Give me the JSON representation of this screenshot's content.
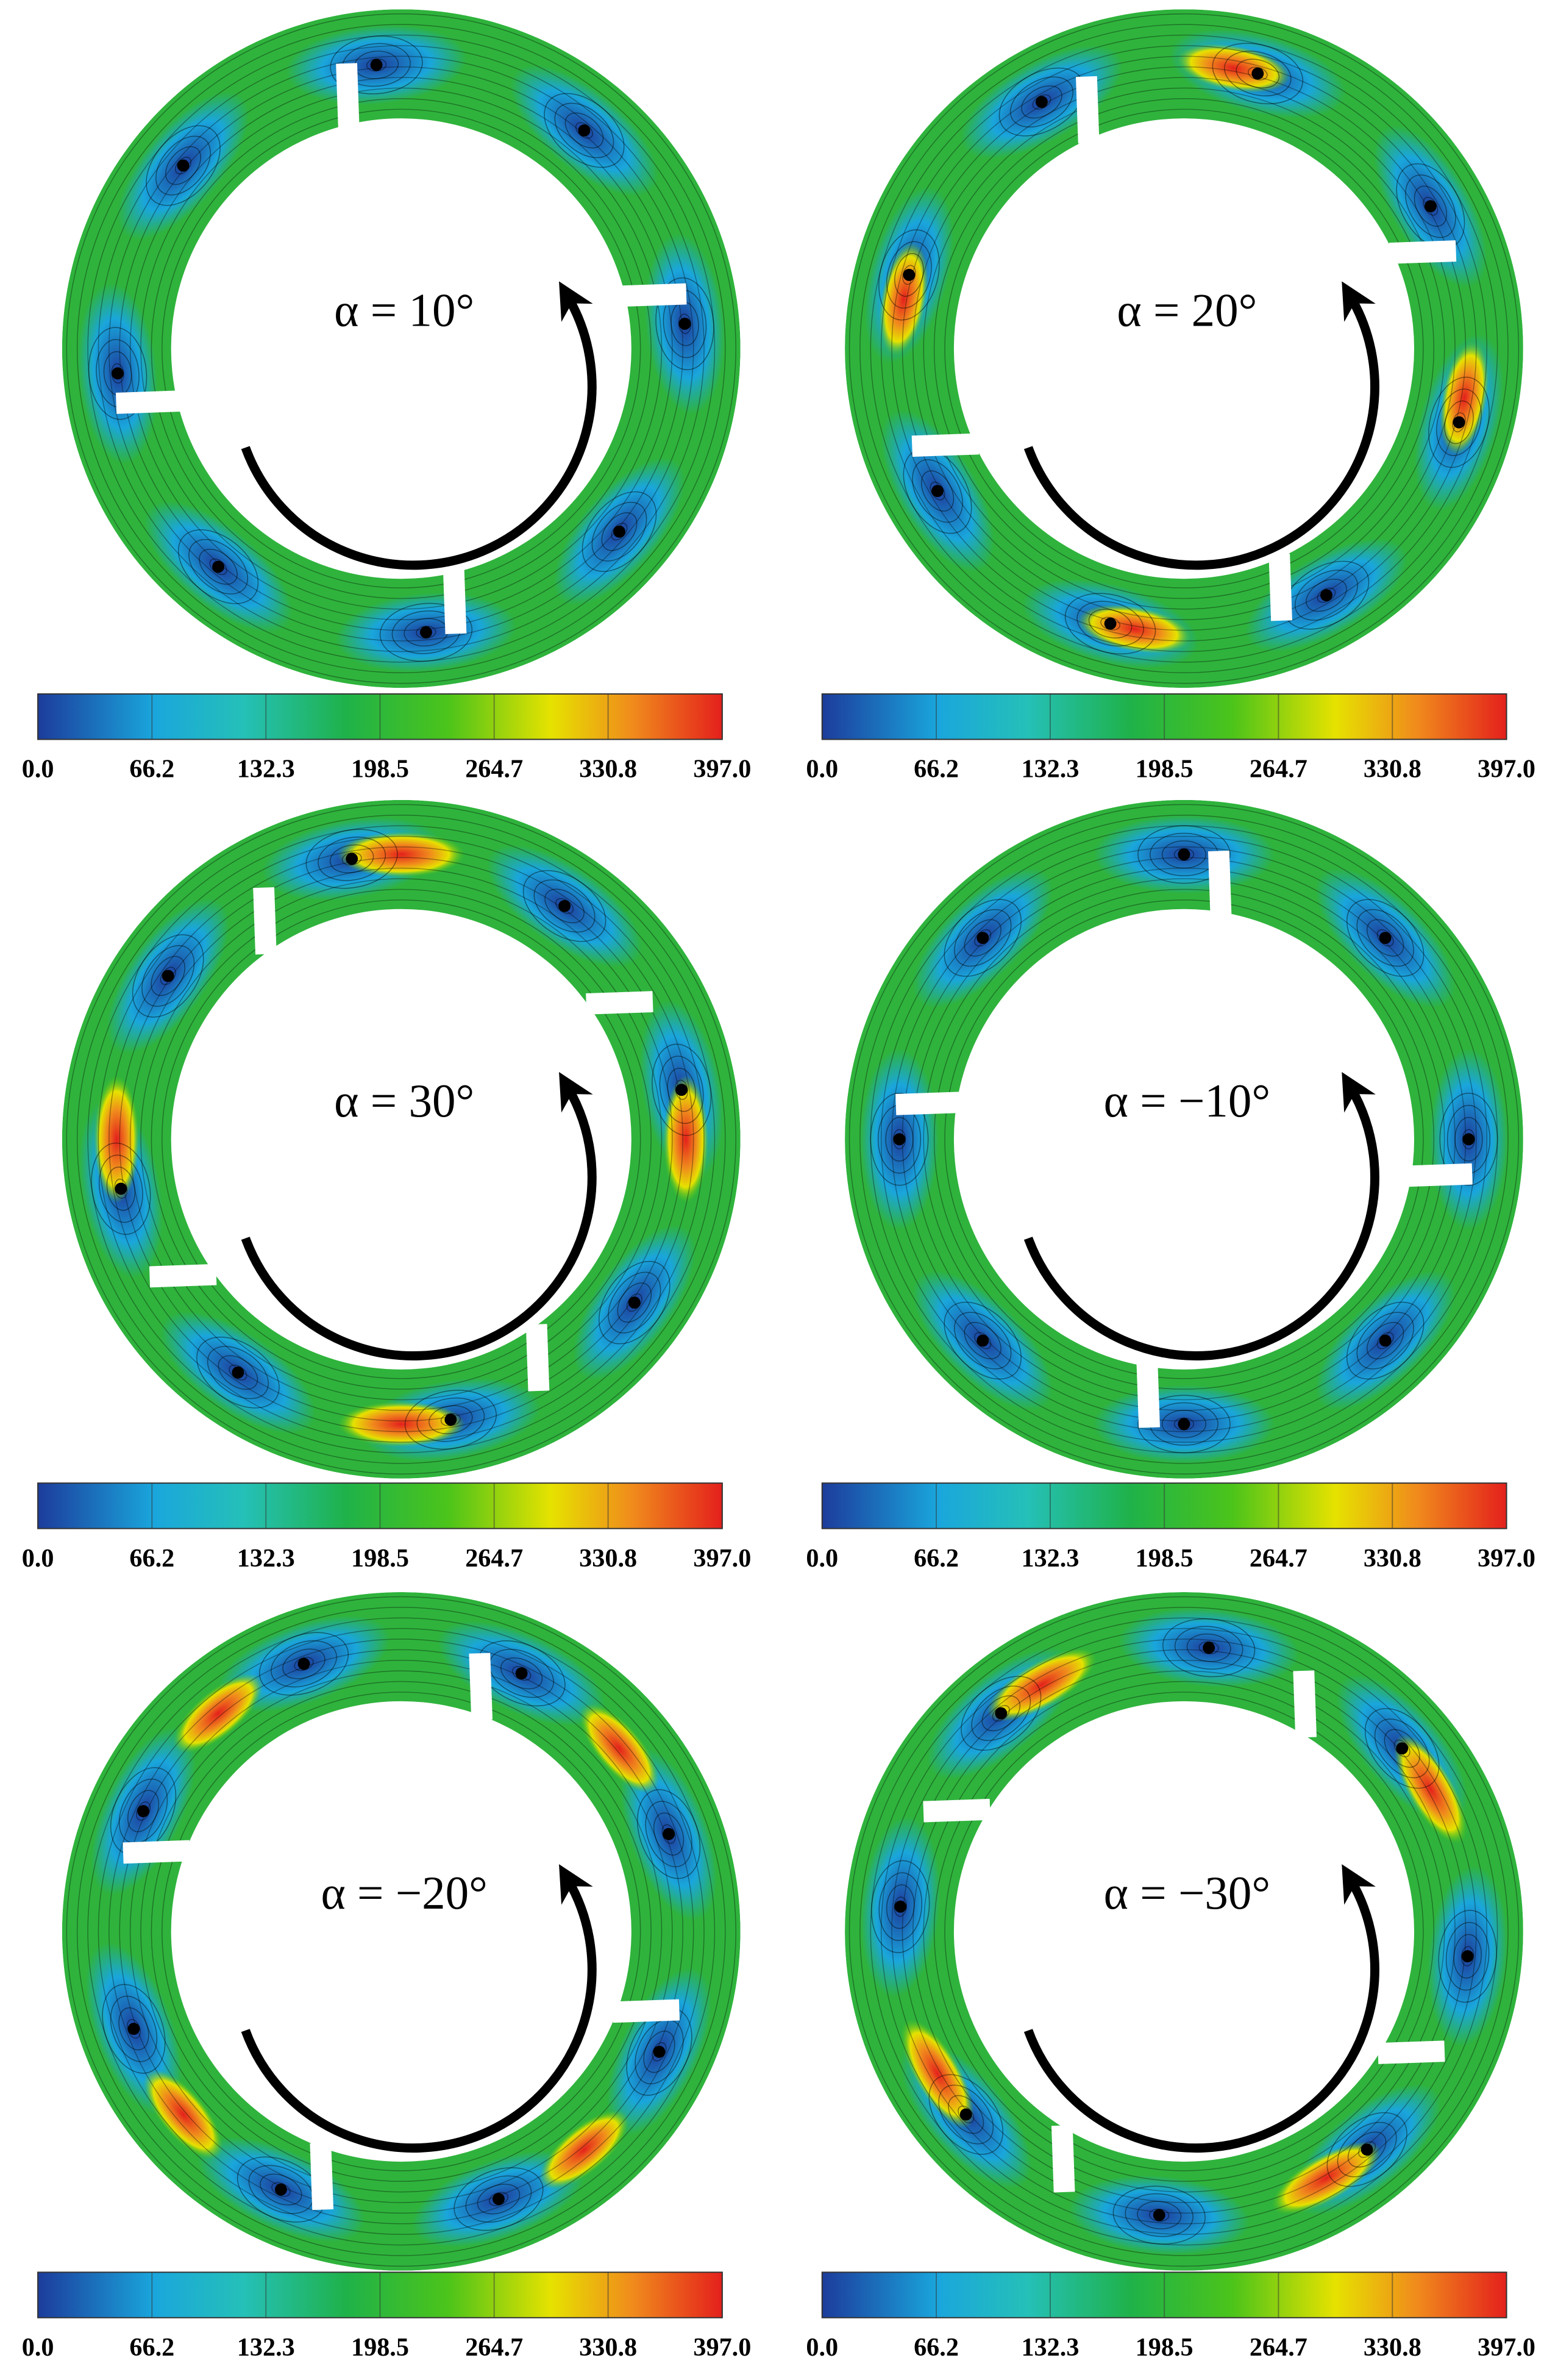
{
  "panels": [
    {
      "label": "α = 10°",
      "colorbar": {
        "range": [
          0,
          397
        ],
        "ticks": [
          {
            "value": 0,
            "label": "0.0"
          },
          {
            "value": 66.2,
            "label": "66.2"
          },
          {
            "value": 132.3,
            "label": "132.3"
          },
          {
            "value": 198.5,
            "label": "198.5"
          },
          {
            "value": 264.7,
            "label": "264.7"
          },
          {
            "value": 330.8,
            "label": "330.8"
          },
          {
            "value": 397,
            "label": "397.0"
          }
        ]
      }
    },
    {
      "label": "α = 20°",
      "colorbar": {
        "range": [
          0,
          397
        ],
        "ticks": [
          {
            "value": 0,
            "label": "0.0"
          },
          {
            "value": 66.2,
            "label": "66.2"
          },
          {
            "value": 132.3,
            "label": "132.3"
          },
          {
            "value": 198.5,
            "label": "198.5"
          },
          {
            "value": 264.7,
            "label": "264.7"
          },
          {
            "value": 330.8,
            "label": "330.8"
          },
          {
            "value": 397,
            "label": "397.0"
          }
        ]
      }
    },
    {
      "label": "α = 30°",
      "colorbar": {
        "range": [
          0,
          397
        ],
        "ticks": [
          {
            "value": 0,
            "label": "0.0"
          },
          {
            "value": 66.2,
            "label": "66.2"
          },
          {
            "value": 132.3,
            "label": "132.3"
          },
          {
            "value": 198.5,
            "label": "198.5"
          },
          {
            "value": 264.7,
            "label": "264.7"
          },
          {
            "value": 330.8,
            "label": "330.8"
          },
          {
            "value": 397,
            "label": "397.0"
          }
        ]
      }
    },
    {
      "label": "α = −10°",
      "colorbar": {
        "range": [
          0,
          397
        ],
        "ticks": [
          {
            "value": 0,
            "label": "0.0"
          },
          {
            "value": 66.2,
            "label": "66.2"
          },
          {
            "value": 132.3,
            "label": "132.3"
          },
          {
            "value": 198.5,
            "label": "198.5"
          },
          {
            "value": 264.7,
            "label": "264.7"
          },
          {
            "value": 330.8,
            "label": "330.8"
          },
          {
            "value": 397,
            "label": "397.0"
          }
        ]
      }
    },
    {
      "label": "α = −20°",
      "colorbar": {
        "range": [
          0,
          397
        ],
        "ticks": [
          {
            "value": 0,
            "label": "0.0"
          },
          {
            "value": 66.2,
            "label": "66.2"
          },
          {
            "value": 132.3,
            "label": "132.3"
          },
          {
            "value": 198.5,
            "label": "198.5"
          },
          {
            "value": 264.7,
            "label": "264.7"
          },
          {
            "value": 330.8,
            "label": "330.8"
          },
          {
            "value": 397,
            "label": "397.0"
          }
        ]
      }
    },
    {
      "label": "α = −30°",
      "colorbar": {
        "range": [
          0,
          397
        ],
        "ticks": [
          {
            "value": 0,
            "label": "0.0"
          },
          {
            "value": 66.2,
            "label": "66.2"
          },
          {
            "value": 132.3,
            "label": "132.3"
          },
          {
            "value": 198.5,
            "label": "198.5"
          },
          {
            "value": 264.7,
            "label": "264.7"
          },
          {
            "value": 330.8,
            "label": "330.8"
          },
          {
            "value": 397,
            "label": "397.0"
          }
        ]
      }
    }
  ]
}
